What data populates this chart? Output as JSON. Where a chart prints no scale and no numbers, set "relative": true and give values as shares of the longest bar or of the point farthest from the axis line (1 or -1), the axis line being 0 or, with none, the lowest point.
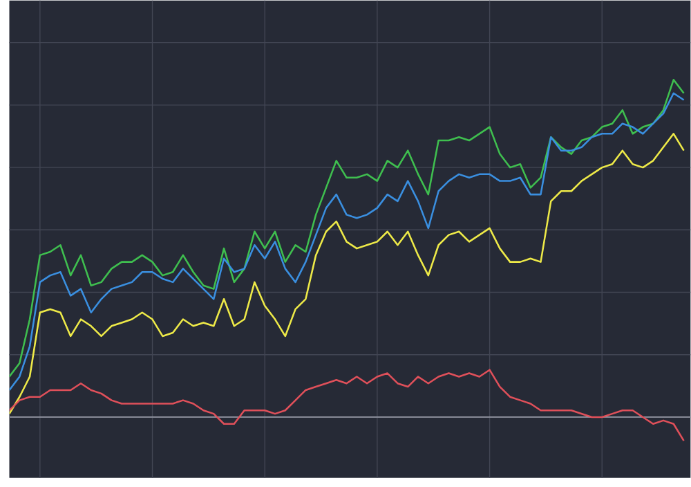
{
  "chart_data": {
    "type": "line",
    "relative": true,
    "grid": true,
    "categories": [
      null,
      null,
      null,
      null,
      null,
      null,
      null,
      null,
      null,
      null,
      null,
      null,
      null,
      null,
      null,
      null,
      null,
      null,
      null,
      null,
      null,
      null,
      null,
      null,
      null,
      null,
      null,
      null,
      null,
      null,
      null,
      null,
      null,
      null,
      null,
      null,
      null,
      null,
      null,
      null,
      null,
      null,
      null,
      null,
      null,
      null,
      null,
      null,
      null,
      null,
      null,
      null,
      null,
      null,
      null,
      null,
      null,
      null,
      null,
      null,
      null,
      null,
      null,
      null,
      null,
      null,
      null
    ],
    "series": [
      {
        "color": "#3fbf4f",
        "values": [
          0.12,
          0.16,
          0.29,
          0.48,
          0.49,
          0.51,
          0.42,
          0.48,
          0.39,
          0.4,
          0.44,
          0.46,
          0.46,
          0.48,
          0.46,
          0.42,
          0.43,
          0.48,
          0.43,
          0.39,
          0.38,
          0.5,
          0.4,
          0.44,
          0.55,
          0.5,
          0.55,
          0.46,
          0.51,
          0.49,
          0.6,
          0.68,
          0.76,
          0.71,
          0.71,
          0.72,
          0.7,
          0.76,
          0.74,
          0.79,
          0.72,
          0.66,
          0.82,
          0.82,
          0.83,
          0.82,
          0.84,
          0.86,
          0.78,
          0.74,
          0.75,
          0.68,
          0.71,
          0.83,
          0.8,
          0.78,
          0.82,
          0.83,
          0.86,
          0.87,
          0.91,
          0.84,
          0.86,
          0.87,
          0.91,
          1.0,
          0.96
        ]
      },
      {
        "color": "#3a8fe0",
        "values": [
          0.08,
          0.12,
          0.21,
          0.4,
          0.42,
          0.43,
          0.36,
          0.38,
          0.31,
          0.35,
          0.38,
          0.39,
          0.4,
          0.43,
          0.43,
          0.41,
          0.4,
          0.44,
          0.41,
          0.38,
          0.35,
          0.47,
          0.43,
          0.44,
          0.51,
          0.47,
          0.52,
          0.44,
          0.4,
          0.46,
          0.54,
          0.62,
          0.66,
          0.6,
          0.59,
          0.6,
          0.62,
          0.66,
          0.64,
          0.7,
          0.64,
          0.56,
          0.67,
          0.7,
          0.72,
          0.71,
          0.72,
          0.72,
          0.7,
          0.7,
          0.71,
          0.66,
          0.66,
          0.83,
          0.79,
          0.79,
          0.8,
          0.83,
          0.84,
          0.84,
          0.87,
          0.86,
          0.84,
          0.87,
          0.9,
          0.96,
          0.94
        ]
      },
      {
        "color": "#eeea48",
        "values": [
          0.01,
          0.06,
          0.12,
          0.31,
          0.32,
          0.31,
          0.24,
          0.29,
          0.27,
          0.24,
          0.27,
          0.28,
          0.29,
          0.31,
          0.29,
          0.24,
          0.25,
          0.29,
          0.27,
          0.28,
          0.27,
          0.35,
          0.27,
          0.29,
          0.4,
          0.33,
          0.29,
          0.24,
          0.32,
          0.35,
          0.48,
          0.55,
          0.58,
          0.52,
          0.5,
          0.51,
          0.52,
          0.55,
          0.51,
          0.55,
          0.48,
          0.42,
          0.51,
          0.54,
          0.55,
          0.52,
          0.54,
          0.56,
          0.5,
          0.46,
          0.46,
          0.47,
          0.46,
          0.64,
          0.67,
          0.67,
          0.7,
          0.72,
          0.74,
          0.75,
          0.79,
          0.75,
          0.74,
          0.76,
          0.8,
          0.84,
          0.79
        ]
      },
      {
        "color": "#e0505a",
        "values": [
          0.02,
          0.05,
          0.06,
          0.06,
          0.08,
          0.08,
          0.08,
          0.1,
          0.08,
          0.07,
          0.05,
          0.04,
          0.04,
          0.04,
          0.04,
          0.04,
          0.04,
          0.05,
          0.04,
          0.02,
          0.01,
          -0.02,
          -0.02,
          0.02,
          0.02,
          0.02,
          0.01,
          0.02,
          0.05,
          0.08,
          0.09,
          0.1,
          0.11,
          0.1,
          0.12,
          0.1,
          0.12,
          0.13,
          0.1,
          0.09,
          0.12,
          0.1,
          0.12,
          0.13,
          0.12,
          0.13,
          0.12,
          0.14,
          0.09,
          0.06,
          0.05,
          0.04,
          0.02,
          0.02,
          0.02,
          0.02,
          0.01,
          0.0,
          0.0,
          0.01,
          0.02,
          0.02,
          0.0,
          -0.02,
          -0.01,
          -0.02,
          -0.07
        ]
      }
    ]
  }
}
